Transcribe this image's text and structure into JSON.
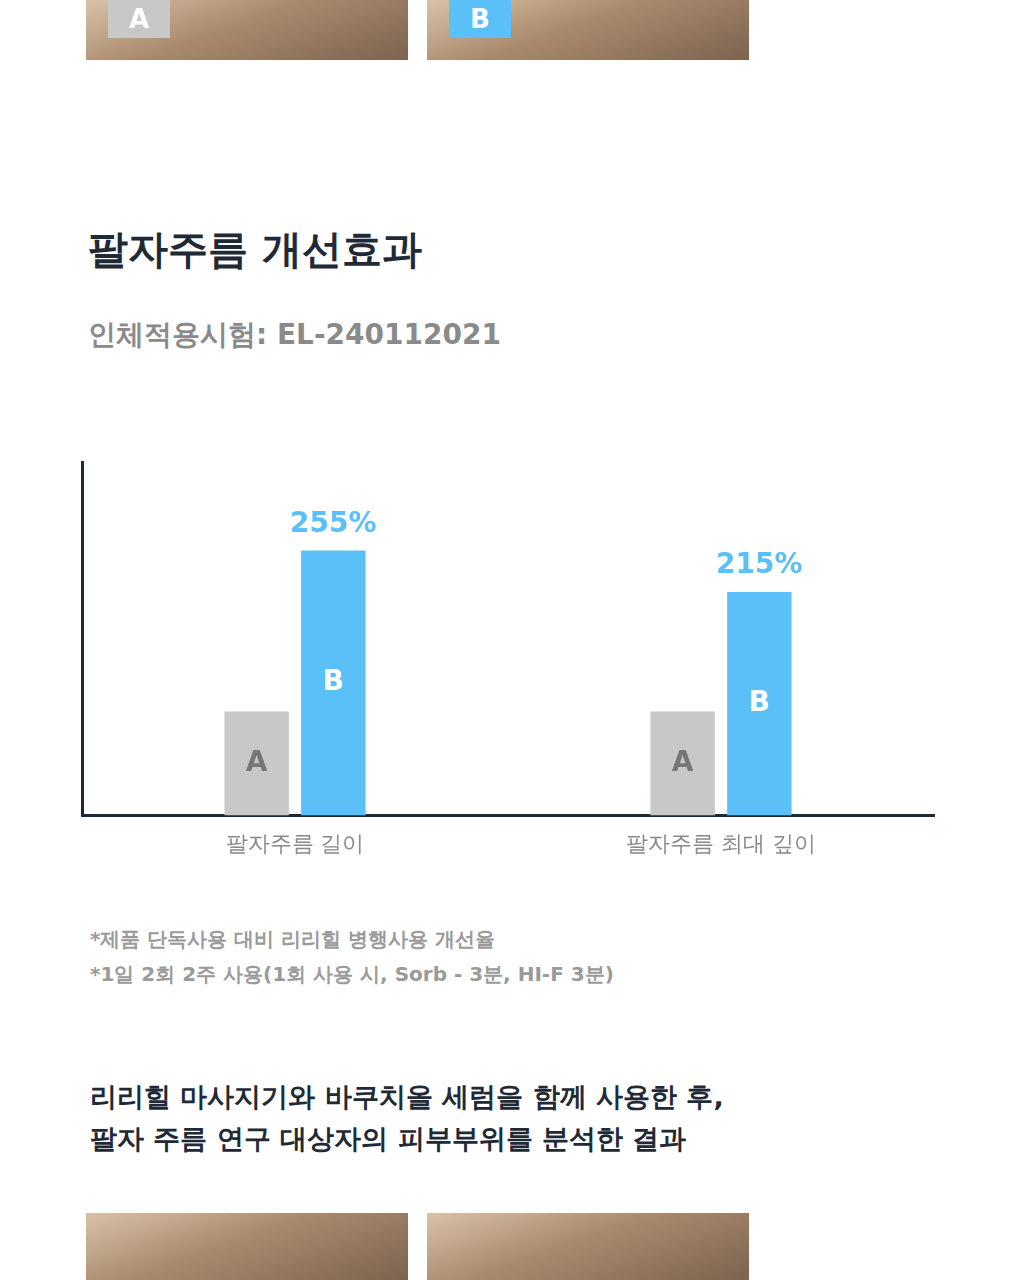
{
  "photos_top": [
    "A",
    "B"
  ],
  "chart_data": {
    "type": "bar",
    "title": "팔자주름 개선효과",
    "subtitle": "인체적용시험: EL-240112021",
    "categories": [
      "팔자주름 길이",
      "팔자주름 최대 깊이"
    ],
    "series": [
      {
        "name": "A",
        "color": "#c8c8c8",
        "values": [
          100,
          100
        ]
      },
      {
        "name": "B",
        "color": "#5bbff8",
        "values": [
          255,
          215
        ],
        "value_labels": [
          "255%",
          "215%"
        ]
      }
    ],
    "ylim": [
      0,
      340
    ],
    "grid": false,
    "data_labels": true,
    "tick_labels": "x"
  },
  "notes": [
    "*제품 단독사용 대비 리리힐 병행사용 개선율",
    "*1일 2회 2주 사용(1회 사용 시, Sorb - 3분, HI-F 3분)"
  ],
  "caption": [
    "리리힐 마사지기와 바쿠치올 세럼을 함께 사용한 후,",
    "팔자 주름 연구 대상자의 피부부위를 분석한 결과"
  ]
}
